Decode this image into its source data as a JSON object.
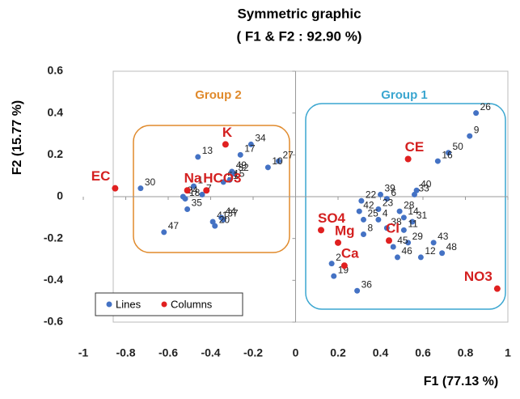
{
  "chart_data": {
    "type": "scatter",
    "title": "Symmetric graphic",
    "subtitle": "( F1 & F2 : 92.90 %)",
    "x_label": "F1 (77.13 %)",
    "y_label": "F2 (15.77 %)",
    "annotations": [
      "Group 2",
      "Group 1"
    ],
    "xlim": [
      -1,
      1
    ],
    "xticks": [
      -1,
      -0.8,
      -0.6,
      -0.4,
      -0.2,
      0,
      0.2,
      0.4,
      0.6,
      0.8,
      1
    ],
    "ylim": [
      -0.6,
      0.6
    ],
    "yticks": [
      -0.6,
      -0.4,
      -0.2,
      0,
      0.2,
      0.4,
      0.6
    ],
    "legend": "bottom-left",
    "series": [
      {
        "name": "Lines",
        "color": "#4472c4",
        "labels": [
          "26",
          "9",
          "50",
          "16",
          "40",
          "33",
          "39",
          "22",
          "6",
          "23",
          "28",
          "14",
          "42",
          "25",
          "4",
          "31",
          "38",
          "11",
          "8",
          "29",
          "43",
          "45",
          "46",
          "12",
          "48",
          "19",
          "36",
          "2",
          "34",
          "17",
          "27",
          "10",
          "13",
          "49",
          "32",
          "51",
          "15",
          "30",
          "1",
          "24",
          "18",
          "7",
          "35",
          "41",
          "44",
          "37",
          "20",
          "47"
        ],
        "x": [
          0.85,
          0.82,
          0.72,
          0.67,
          0.57,
          0.56,
          0.4,
          0.31,
          0.43,
          0.39,
          0.49,
          0.51,
          0.3,
          0.32,
          0.39,
          0.55,
          0.43,
          0.51,
          0.32,
          0.53,
          0.65,
          0.46,
          0.48,
          0.59,
          0.69,
          0.18,
          0.29,
          0.17,
          -0.21,
          -0.26,
          -0.08,
          -0.13,
          -0.46,
          -0.3,
          -0.29,
          -0.34,
          -0.31,
          -0.73,
          -0.48,
          -0.53,
          -0.52,
          -0.44,
          -0.51,
          -0.39,
          -0.35,
          -0.34,
          -0.38,
          -0.62
        ],
        "y": [
          0.4,
          0.29,
          0.21,
          0.17,
          0.03,
          0.01,
          0.01,
          -0.02,
          -0.01,
          -0.06,
          -0.07,
          -0.1,
          -0.07,
          -0.11,
          -0.11,
          -0.12,
          -0.15,
          -0.16,
          -0.18,
          -0.22,
          -0.22,
          -0.24,
          -0.29,
          -0.29,
          -0.27,
          -0.38,
          -0.45,
          -0.32,
          0.25,
          0.2,
          0.17,
          0.14,
          0.19,
          0.12,
          0.11,
          0.07,
          0.08,
          0.04,
          0.05,
          0.0,
          -0.01,
          0.01,
          -0.06,
          -0.12,
          -0.1,
          -0.11,
          -0.14,
          -0.17
        ]
      },
      {
        "name": "Columns",
        "color": "#e02020",
        "labels": [
          "K",
          "CE",
          "Na",
          "HCO3",
          "EC",
          "SO4",
          "Mg",
          "Ca",
          "Cl",
          "NO3"
        ],
        "x": [
          -0.33,
          0.53,
          -0.51,
          -0.42,
          -0.85,
          0.12,
          0.2,
          0.23,
          0.44,
          0.95
        ],
        "y": [
          0.25,
          0.18,
          0.03,
          0.03,
          0.04,
          -0.16,
          -0.22,
          -0.33,
          -0.21,
          -0.44
        ]
      }
    ]
  }
}
